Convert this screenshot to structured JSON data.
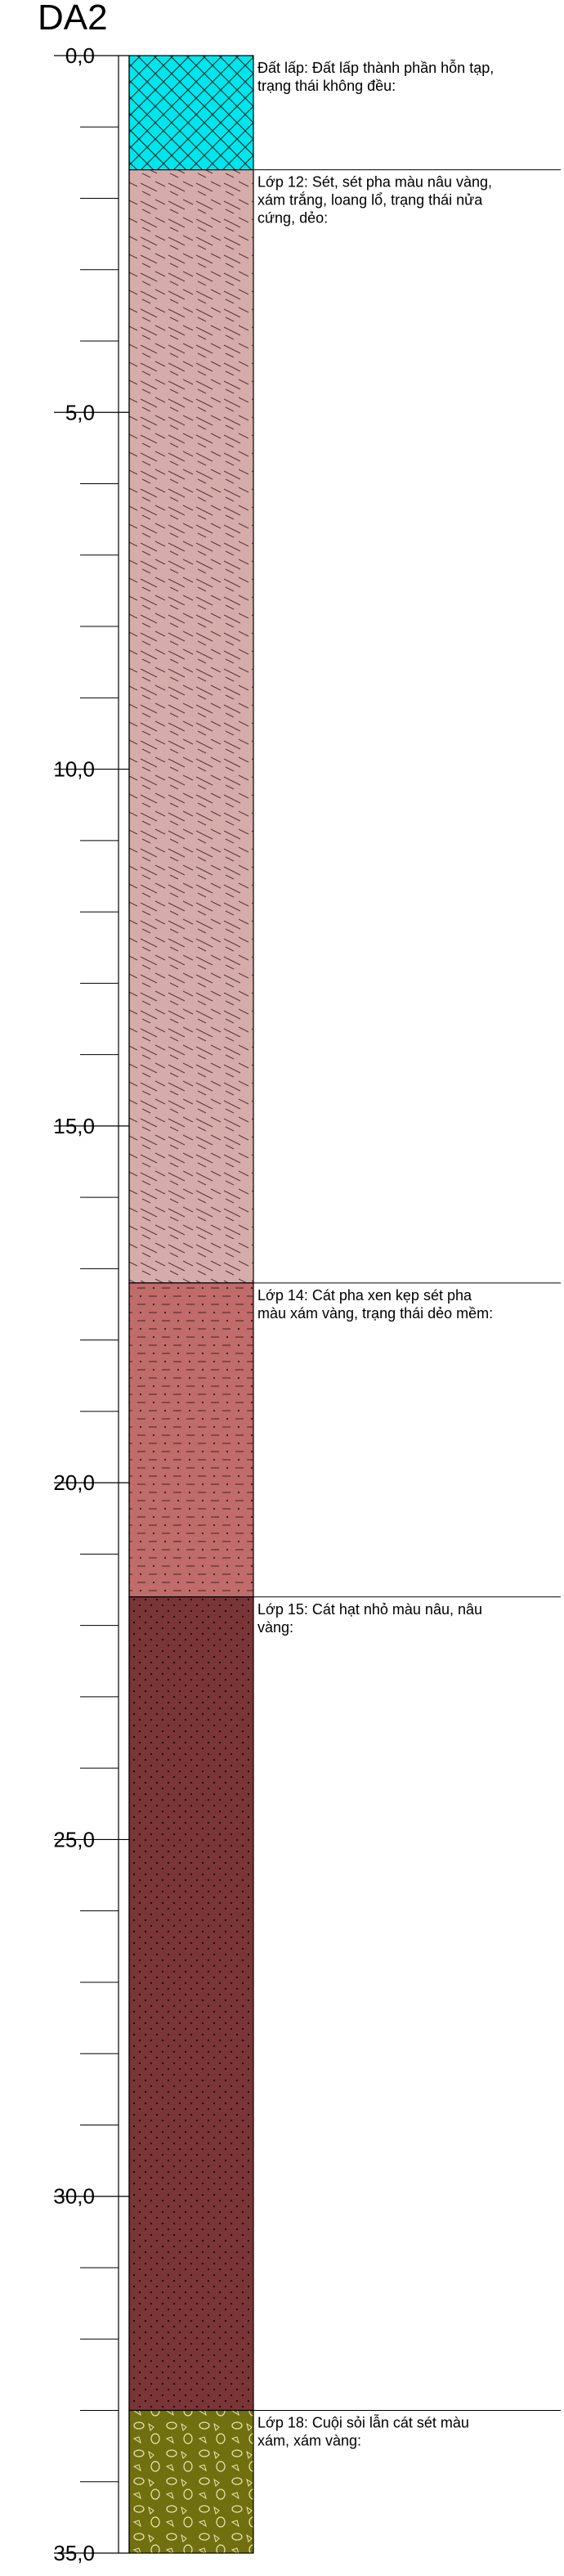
{
  "title": "DA2",
  "depth_range": [
    0,
    35
  ],
  "major_ticks": [
    {
      "depth": 0,
      "label": "0,0"
    },
    {
      "depth": 5,
      "label": "5,0"
    },
    {
      "depth": 10,
      "label": "10,0"
    },
    {
      "depth": 15,
      "label": "15,0"
    },
    {
      "depth": 20,
      "label": "20,0"
    },
    {
      "depth": 25,
      "label": "25,0"
    },
    {
      "depth": 30,
      "label": "30,0"
    },
    {
      "depth": 35,
      "label": "35,0"
    }
  ],
  "layers": [
    {
      "top": 0,
      "bottom": 1.6,
      "pattern": "crosshatch",
      "fill": "#00e6ec",
      "description_lines": [
        "Đất lấp: Đất lấp thành phần hỗn tạp,",
        "trạng thái không đều:"
      ]
    },
    {
      "top": 1.6,
      "bottom": 17.2,
      "pattern": "clay-dash",
      "fill": "#d6acab",
      "description_lines": [
        "Lớp 12: Sét, sét pha màu nâu vàng,",
        "xám trắng, loang lổ, trạng thái nửa",
        "cứng, dẻo:"
      ]
    },
    {
      "top": 17.2,
      "bottom": 21.6,
      "pattern": "sand-clay",
      "fill": "#bf6c6b",
      "description_lines": [
        "Lớp 14: Cát pha xen kẹp sét pha",
        "màu xám vàng, trạng thái dẻo mềm:"
      ]
    },
    {
      "top": 21.6,
      "bottom": 33.0,
      "pattern": "sand-dots",
      "fill": "#7a3537",
      "description_lines": [
        "Lớp 15: Cát hạt nhỏ màu nâu, nâu",
        "vàng:"
      ]
    },
    {
      "top": 33.0,
      "bottom": 35.0,
      "pattern": "gravel",
      "fill": "#707010",
      "description_lines": [
        "Lớp 18: Cuội sỏi lẫn cát sét màu",
        "xám, xám vàng:"
      ]
    }
  ]
}
